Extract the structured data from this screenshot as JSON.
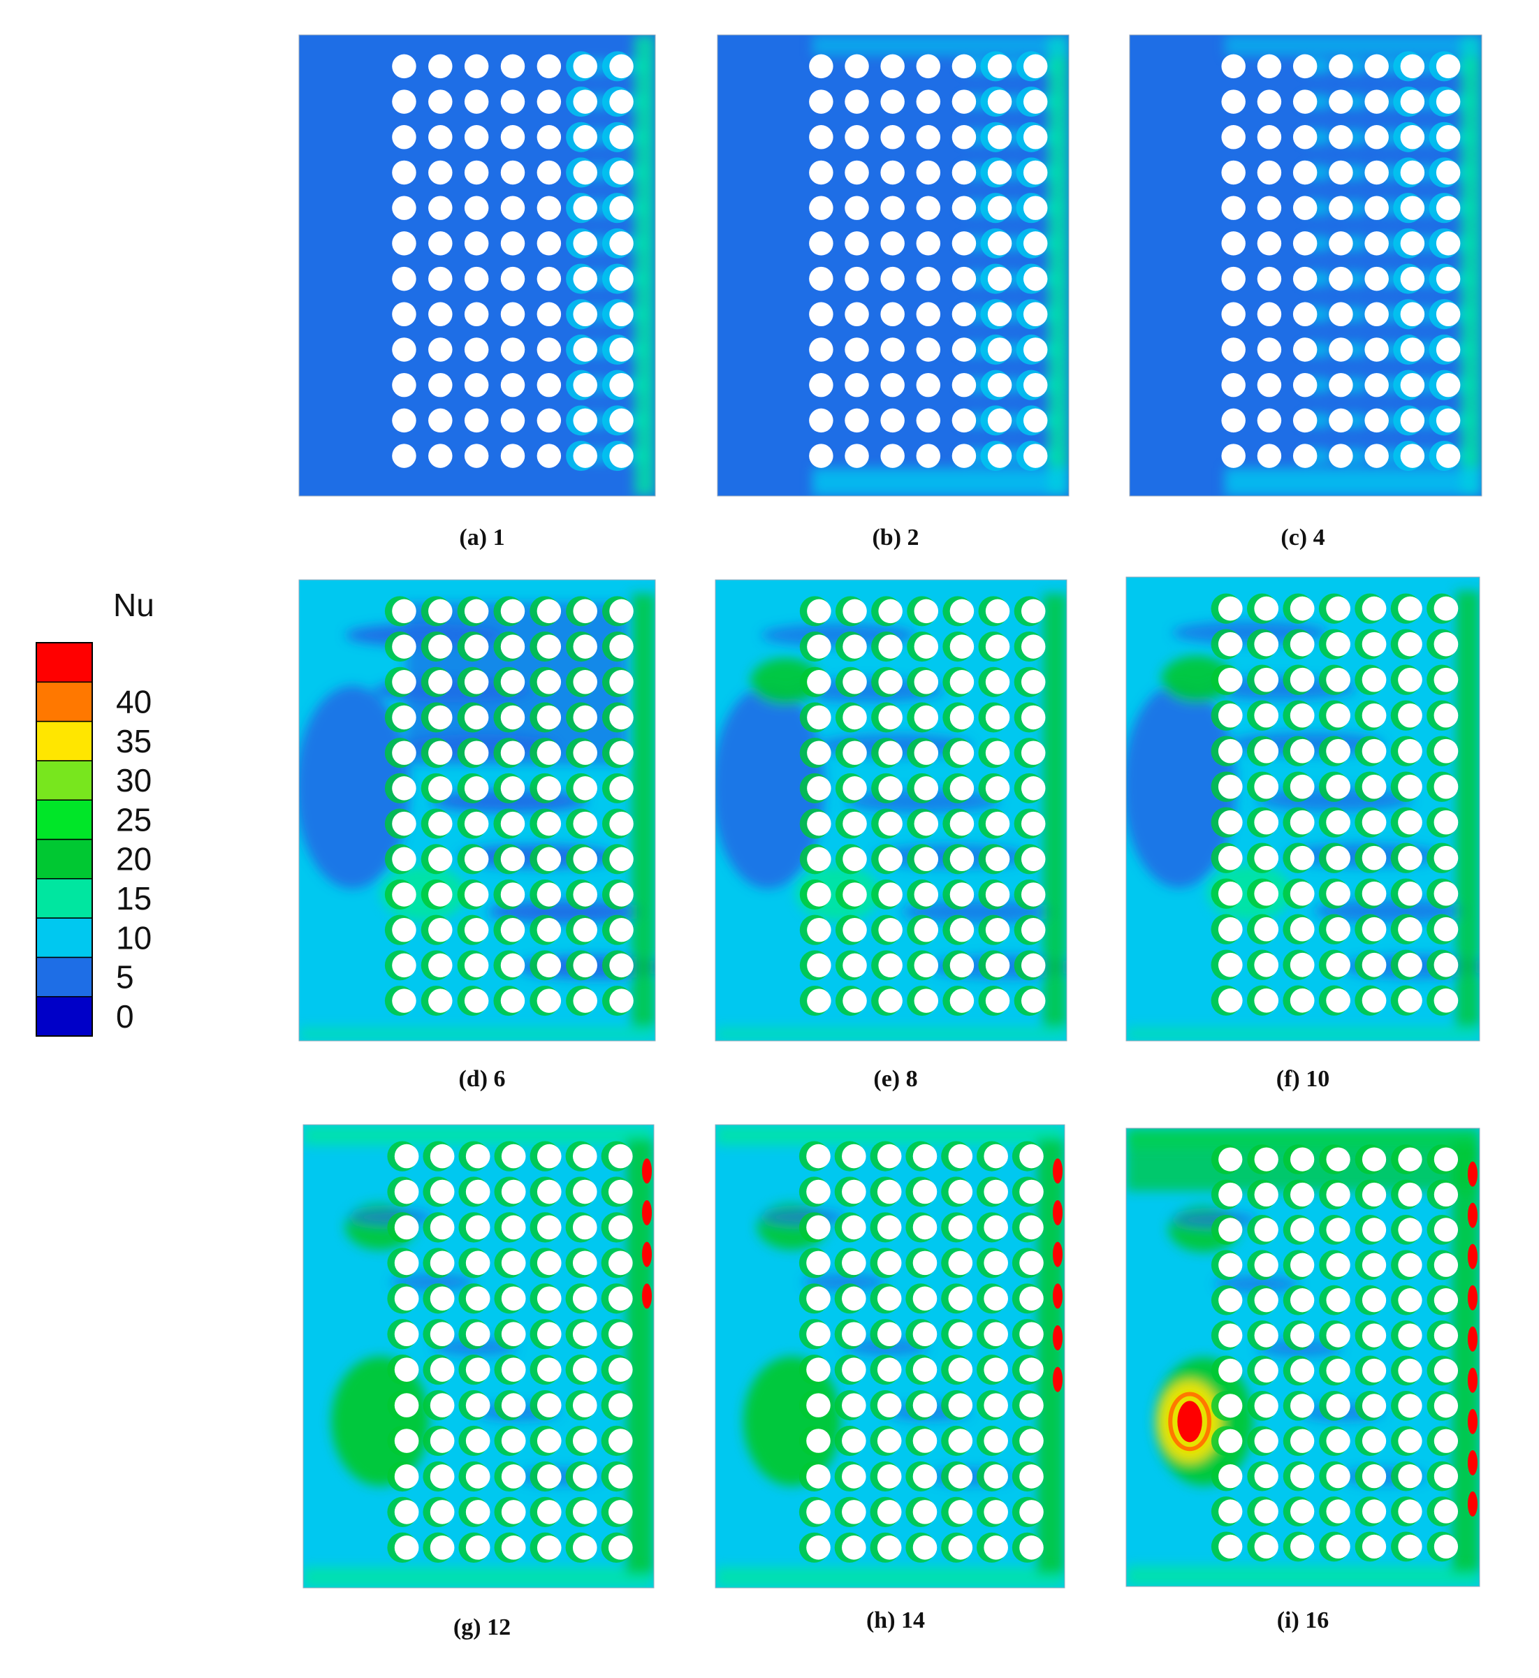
{
  "chart_data": {
    "type": "heatmap",
    "colorbar": {
      "title": "Nu",
      "ticks": [
        "0",
        "5",
        "10",
        "15",
        "20",
        "25",
        "30",
        "35",
        "40"
      ],
      "levels": [
        0,
        5,
        10,
        15,
        20,
        25,
        30,
        35,
        40,
        45
      ],
      "colors": [
        "#0000c8",
        "#1e6ee6",
        "#00c8f0",
        "#00e6a0",
        "#00c832",
        "#00e628",
        "#78e61e",
        "#ffe600",
        "#ff7800",
        "#ff0000"
      ]
    },
    "grid": {
      "rows": 12,
      "cols": 7
    },
    "panels": [
      {
        "caption": "(a) 1",
        "background": "#1e6ee6",
        "hotspots": []
      },
      {
        "caption": "(b) 2",
        "background": "#1e6ee6",
        "hotspots": []
      },
      {
        "caption": "(c) 4",
        "background": "#1e6ee6",
        "hotspots": []
      },
      {
        "caption": "(d) 6",
        "background": "#00c8f0",
        "hotspots": []
      },
      {
        "caption": "(e) 8",
        "background": "#00c8f0",
        "hotspots": []
      },
      {
        "caption": "(f) 10",
        "background": "#00c8f0",
        "hotspots": []
      },
      {
        "caption": "(g) 12",
        "background": "#00c8f0",
        "hotspots": []
      },
      {
        "caption": "(h) 14",
        "background": "#00c8f0",
        "hotspots": []
      },
      {
        "caption": "(i) 16",
        "background": "#00c8f0",
        "hotspots": []
      }
    ]
  }
}
